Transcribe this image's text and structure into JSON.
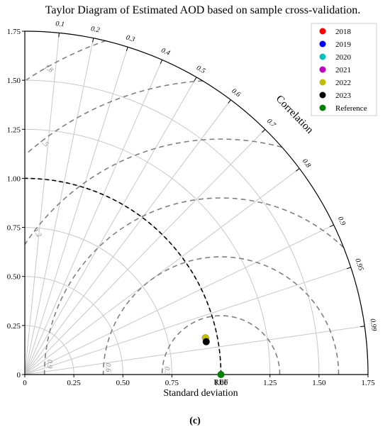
{
  "chart_data": {
    "type": "scatter",
    "subtype": "taylor-diagram",
    "title": "Taylor Diagram of Estimated AOD based on sample cross-validation.",
    "xlabel": "Standard deviation",
    "correlation_label": "Correlation",
    "ref_label": "REF",
    "caption": "(c)",
    "std_max": 1.75,
    "std_ticks": [
      0,
      0.25,
      0.5,
      0.75,
      1.0,
      1.25,
      1.5,
      1.75
    ],
    "std_tick_labels": [
      "0",
      "0.25",
      "0.50",
      "0.75",
      "1.00",
      "1.25",
      "1.50",
      "1.75"
    ],
    "correlation_ticks": [
      0.1,
      0.2,
      0.3,
      0.4,
      0.5,
      0.6,
      0.7,
      0.8,
      0.9,
      0.95,
      0.99
    ],
    "correlation_tick_labels": [
      "0.1",
      "0.2",
      "0.3",
      "0.4",
      "0.5",
      "0.6",
      "0.7",
      "0.8",
      "0.9",
      "0.95",
      "0.99"
    ],
    "rms_contours": [
      0.3,
      0.6,
      0.9,
      1.2,
      1.5,
      1.8
    ],
    "rms_labels": [
      "0.3",
      "0.6",
      "0.9",
      "1.2",
      "1.5",
      "1.8"
    ],
    "reference_std": 1.0,
    "legend_position": "top-right",
    "series": [
      {
        "name": "2018",
        "color": "#ff0000",
        "std": 0.94,
        "corr": 0.98
      },
      {
        "name": "2019",
        "color": "#0000ff",
        "std": 0.94,
        "corr": 0.98
      },
      {
        "name": "2020",
        "color": "#00bfbf",
        "std": 0.94,
        "corr": 0.98
      },
      {
        "name": "2021",
        "color": "#bf00bf",
        "std": 0.94,
        "corr": 0.98
      },
      {
        "name": "2022",
        "color": "#bfbf00",
        "std": 0.94,
        "corr": 0.98
      },
      {
        "name": "2023",
        "color": "#000000",
        "std": 0.94,
        "corr": 0.984
      },
      {
        "name": "Reference",
        "color": "#008000",
        "std": 1.0,
        "corr": 1.0
      }
    ]
  }
}
